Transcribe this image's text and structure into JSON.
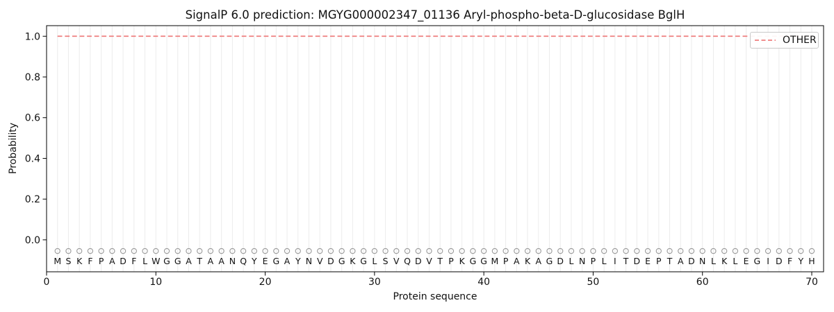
{
  "chart_data": {
    "type": "line",
    "title": "SignalP 6.0 prediction: MGYG000002347_01136 Aryl-phospho-beta-D-glucosidase BglH",
    "xlabel": "Protein sequence",
    "ylabel": "Probability",
    "axes": {
      "xlim": [
        0,
        71.08
      ],
      "ylim": [
        -0.157,
        1.052
      ],
      "x_ticks": [
        0,
        10,
        20,
        30,
        40,
        50,
        60,
        70
      ],
      "y_ticks": [
        0.0,
        0.2,
        0.4,
        0.6,
        0.8,
        1.0
      ],
      "y_tick_labels": [
        "0.0",
        "0.2",
        "0.4",
        "0.6",
        "0.8",
        "1.0"
      ],
      "grid": "vertical-line-at-every-residue",
      "grid_color": "#ececec",
      "spine_color": "#000000",
      "tick_label_color": "#111111"
    },
    "legend": {
      "position": "upper-right",
      "entries": [
        {
          "label": "OTHER",
          "color": "#ee7e7e",
          "line_style": "dashed"
        }
      ]
    },
    "series": [
      {
        "name": "OTHER",
        "line_style": "dashed",
        "color": "#ee7e7e",
        "x_start": 1,
        "x_end": 70,
        "constant_y": 1.0
      }
    ],
    "sequence": {
      "residues": "MSKFPADFLWGGATAANQYEGAYNVDGKGLSVQDVTPKGGMPAKAGDLNPLITDEPTADNLKLEGIDFYH",
      "length": 70,
      "x_start": 1,
      "marker_shape": "open-circle",
      "marker_color": "#9a9a9a",
      "marker_y": -0.055,
      "letter_y": -0.105,
      "letter_color": "#111111"
    }
  }
}
